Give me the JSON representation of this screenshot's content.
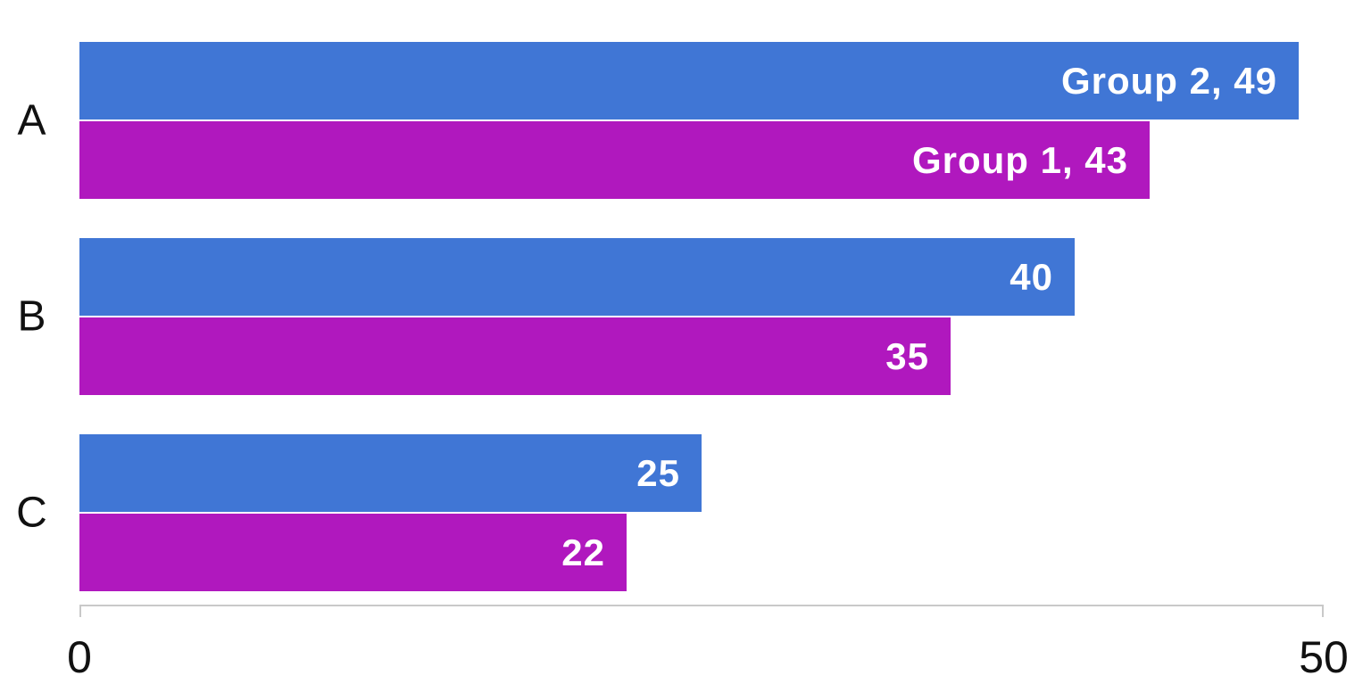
{
  "chart_data": {
    "type": "bar",
    "orientation": "horizontal",
    "title": "",
    "xlabel": "",
    "ylabel": "",
    "categories": [
      "A",
      "B",
      "C"
    ],
    "series": [
      {
        "name": "Group 2",
        "color": "#4076d5",
        "values": [
          49,
          40,
          25
        ],
        "data_labels": [
          "Group 2, 49",
          "40",
          "25"
        ]
      },
      {
        "name": "Group 1",
        "color": "#b018be",
        "values": [
          43,
          35,
          22
        ],
        "data_labels": [
          "Group 1, 43",
          "35",
          "22"
        ]
      }
    ],
    "xlim": [
      0,
      50
    ],
    "x_ticks": [
      {
        "value": 0,
        "label": "0"
      },
      {
        "value": 50,
        "label": "50"
      }
    ],
    "grid": false,
    "legend": "none (series labeled inside first bars)",
    "colors": {
      "axis_line": "#c9c9c9",
      "tick_text": "#111111",
      "category_text": "#111111",
      "bar_label_text": "#ffffff"
    }
  }
}
